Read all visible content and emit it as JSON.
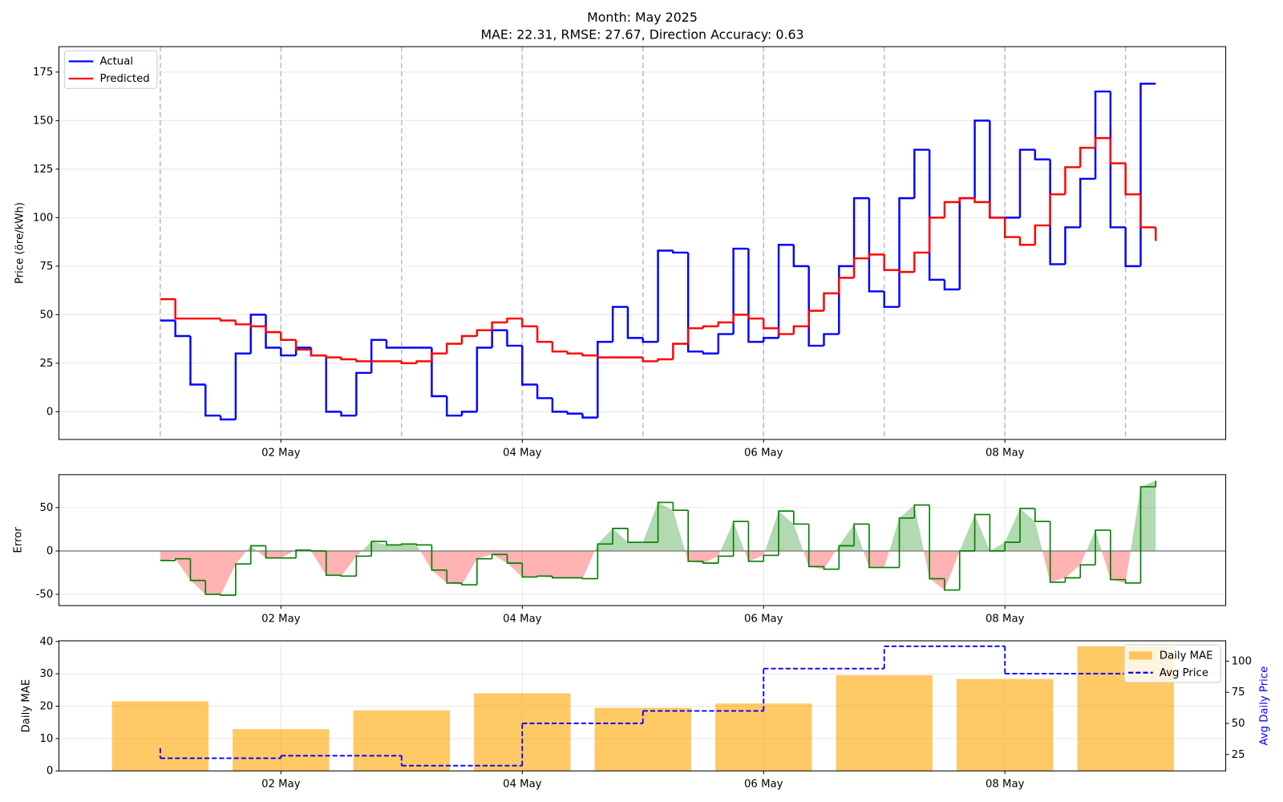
{
  "chart_data": [
    {
      "type": "line",
      "drawstyle": "steps-post",
      "title": "Month: May 2025",
      "subtitle": "MAE: 22.31, RMSE: 27.67, Direction Accuracy: 0.63",
      "ylabel": "Price (öre/kWh)",
      "x": [
        1,
        1.125,
        1.25,
        1.375,
        1.5,
        1.625,
        1.75,
        1.875,
        2,
        2.125,
        2.25,
        2.375,
        2.5,
        2.625,
        2.75,
        2.875,
        3,
        3.125,
        3.25,
        3.375,
        3.5,
        3.625,
        3.75,
        3.875,
        4,
        4.125,
        4.25,
        4.375,
        4.5,
        4.625,
        4.75,
        4.875,
        5,
        5.125,
        5.25,
        5.375,
        5.5,
        5.625,
        5.75,
        5.875,
        6,
        6.125,
        6.25,
        6.375,
        6.5,
        6.625,
        6.75,
        6.875,
        7,
        7.125,
        7.25,
        7.375,
        7.5,
        7.625,
        7.75,
        7.875,
        8,
        8.125,
        8.25,
        8.375,
        8.5,
        8.625,
        8.75,
        8.875,
        9,
        9.125,
        9.25
      ],
      "series": [
        {
          "name": "Actual",
          "color": "#0000ff",
          "values": [
            47,
            39,
            14,
            -2,
            -4,
            30,
            50,
            33,
            29,
            33,
            29,
            0,
            -2,
            20,
            37,
            33,
            33,
            33,
            8,
            -2,
            0,
            33,
            42,
            34,
            14,
            7,
            0,
            -1,
            -3,
            36,
            54,
            38,
            36,
            83,
            82,
            31,
            30,
            40,
            84,
            36,
            38,
            86,
            75,
            34,
            40,
            75,
            110,
            62,
            54,
            110,
            135,
            68,
            63,
            110,
            150,
            100,
            100,
            135,
            130,
            76,
            95,
            120,
            165,
            95,
            75,
            169,
            169
          ]
        },
        {
          "name": "Predicted",
          "color": "#ff0000",
          "values": [
            58,
            48,
            48,
            48,
            47,
            45,
            44,
            41,
            37,
            32,
            29,
            28,
            27,
            26,
            26,
            26,
            25,
            26,
            30,
            35,
            39,
            42,
            46,
            48,
            44,
            36,
            31,
            30,
            29,
            28,
            28,
            28,
            26,
            27,
            35,
            43,
            44,
            46,
            50,
            48,
            43,
            40,
            44,
            52,
            61,
            69,
            79,
            81,
            73,
            72,
            82,
            100,
            108,
            110,
            108,
            100,
            90,
            86,
            96,
            112,
            126,
            136,
            141,
            128,
            112,
            95,
            88
          ]
        }
      ],
      "vlines": [
        1,
        2,
        3,
        4,
        5,
        6,
        7,
        8,
        9
      ],
      "xlim": [
        0.16,
        9.83
      ],
      "ylim": [
        -14.3,
        188.1
      ],
      "xticks": [
        {
          "value": 2,
          "label": "02 May"
        },
        {
          "value": 4,
          "label": "04 May"
        },
        {
          "value": 6,
          "label": "06 May"
        },
        {
          "value": 8,
          "label": "08 May"
        }
      ],
      "yticks": [
        0,
        25,
        50,
        75,
        100,
        125,
        150,
        175
      ],
      "grid": true,
      "legend": "upper left"
    },
    {
      "type": "area",
      "drawstyle": "steps-post",
      "ylabel": "Error",
      "x": [
        1,
        1.125,
        1.25,
        1.375,
        1.5,
        1.625,
        1.75,
        1.875,
        2,
        2.125,
        2.25,
        2.375,
        2.5,
        2.625,
        2.75,
        2.875,
        3,
        3.125,
        3.25,
        3.375,
        3.5,
        3.625,
        3.75,
        3.875,
        4,
        4.125,
        4.25,
        4.375,
        4.5,
        4.625,
        4.75,
        4.875,
        5,
        5.125,
        5.25,
        5.375,
        5.5,
        5.625,
        5.75,
        5.875,
        6,
        6.125,
        6.25,
        6.375,
        6.5,
        6.625,
        6.75,
        6.875,
        7,
        7.125,
        7.25,
        7.375,
        7.5,
        7.625,
        7.75,
        7.875,
        8,
        8.125,
        8.25,
        8.375,
        8.5,
        8.625,
        8.75,
        8.875,
        9,
        9.125,
        9.25
      ],
      "values": [
        -11,
        -9,
        -34,
        -50,
        -51,
        -15,
        6,
        -8,
        -8,
        1,
        0,
        -28,
        -29,
        -6,
        11,
        7,
        8,
        7,
        -22,
        -37,
        -39,
        -9,
        -4,
        -14,
        -30,
        -29,
        -31,
        -31,
        -32,
        8,
        26,
        10,
        10,
        56,
        47,
        -12,
        -14,
        -6,
        34,
        -12,
        -5,
        46,
        31,
        -18,
        -21,
        6,
        31,
        -19,
        -19,
        38,
        53,
        -32,
        -45,
        0,
        42,
        0,
        10,
        49,
        34,
        -36,
        -31,
        -16,
        24,
        -33,
        -37,
        74,
        81
      ],
      "color": "#008000",
      "positive_color": "#008000",
      "negative_color": "#ff0000",
      "fill_alpha": 0.3,
      "hline": 0,
      "xlim": [
        0.16,
        9.83
      ],
      "ylim": [
        -63,
        88
      ],
      "xticks": [
        {
          "value": 2,
          "label": "02 May"
        },
        {
          "value": 4,
          "label": "04 May"
        },
        {
          "value": 6,
          "label": "06 May"
        },
        {
          "value": 8,
          "label": "08 May"
        }
      ],
      "yticks": [
        -50,
        0,
        50
      ],
      "grid": true
    },
    {
      "type": "bar",
      "ylabel": "Daily MAE",
      "y2label": "Avg Daily Price",
      "x": [
        1,
        2,
        3,
        4,
        5,
        6,
        7,
        8,
        9
      ],
      "series": [
        {
          "name": "Daily MAE",
          "color": "#ffa500",
          "alpha": 0.6,
          "values": [
            21.5,
            12.9,
            18.7,
            24.0,
            19.5,
            20.8,
            29.6,
            28.4,
            38.5
          ]
        },
        {
          "name": "Avg Price",
          "color": "#0000ff",
          "axis": "y2",
          "linestyle": "dashed",
          "drawstyle": "steps-pre",
          "values": [
            30,
            22,
            24,
            16,
            50,
            60,
            94,
            112,
            90
          ]
        }
      ],
      "xlim": [
        0.16,
        9.83
      ],
      "ylim": [
        0,
        40.2
      ],
      "y2lim": [
        11.8,
        116.4
      ],
      "xticks": [
        {
          "value": 2,
          "label": "02 May"
        },
        {
          "value": 4,
          "label": "04 May"
        },
        {
          "value": 6,
          "label": "06 May"
        },
        {
          "value": 8,
          "label": "08 May"
        }
      ],
      "yticks": [
        0,
        10,
        20,
        30,
        40
      ],
      "y2ticks": [
        25,
        50,
        75,
        100
      ],
      "y2color": "#0000ff",
      "grid": true,
      "legend": "upper right"
    }
  ]
}
